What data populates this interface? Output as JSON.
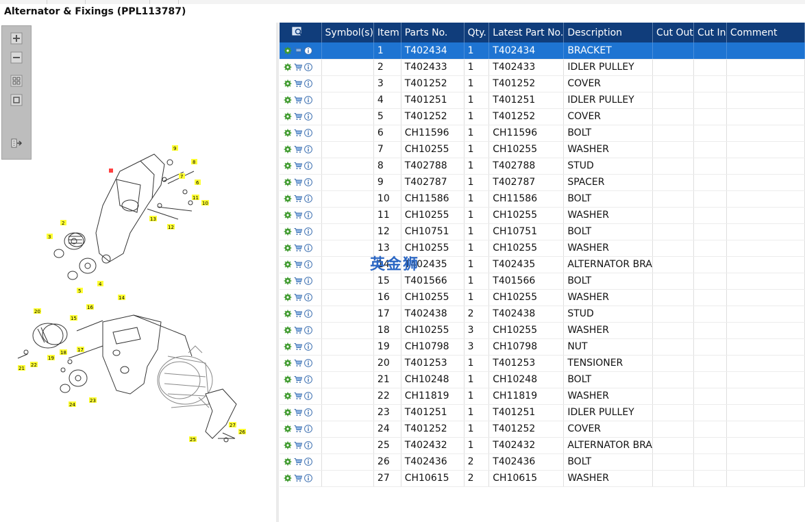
{
  "window": {
    "title": "Alternator & Fixings (PPL113787)"
  },
  "toolbar": {
    "buttons": [
      {
        "name": "zoom-in",
        "icon": "zoom-in-icon"
      },
      {
        "name": "zoom-out",
        "icon": "zoom-out-icon"
      },
      {
        "name": "fit-all",
        "icon": "fit-all-icon"
      },
      {
        "name": "fit-window",
        "icon": "fit-window-icon"
      },
      {
        "name": "export",
        "icon": "export-icon"
      }
    ]
  },
  "diagram": {
    "callouts": [
      "1",
      "2",
      "3",
      "4",
      "5",
      "6",
      "7",
      "8",
      "9",
      "10",
      "11",
      "12",
      "13",
      "14",
      "15",
      "16",
      "17",
      "18",
      "19",
      "20",
      "21",
      "22",
      "23",
      "24",
      "25",
      "26",
      "27"
    ]
  },
  "watermark": "英金狮",
  "table": {
    "columns": [
      "",
      "Symbol(s)",
      "Item",
      "Parts No.",
      "Qty.",
      "Latest Part No.",
      "Description",
      "Cut Out",
      "Cut In",
      "Comment"
    ],
    "selected_row": 0,
    "rows": [
      {
        "item": "1",
        "part_no": "T402434",
        "qty": "1",
        "latest": "T402434",
        "desc": "BRACKET"
      },
      {
        "item": "2",
        "part_no": "T402433",
        "qty": "1",
        "latest": "T402433",
        "desc": "IDLER PULLEY"
      },
      {
        "item": "3",
        "part_no": "T401252",
        "qty": "1",
        "latest": "T401252",
        "desc": "COVER"
      },
      {
        "item": "4",
        "part_no": "T401251",
        "qty": "1",
        "latest": "T401251",
        "desc": "IDLER PULLEY"
      },
      {
        "item": "5",
        "part_no": "T401252",
        "qty": "1",
        "latest": "T401252",
        "desc": "COVER"
      },
      {
        "item": "6",
        "part_no": "CH11596",
        "qty": "1",
        "latest": "CH11596",
        "desc": "BOLT"
      },
      {
        "item": "7",
        "part_no": "CH10255",
        "qty": "1",
        "latest": "CH10255",
        "desc": "WASHER"
      },
      {
        "item": "8",
        "part_no": "T402788",
        "qty": "1",
        "latest": "T402788",
        "desc": "STUD"
      },
      {
        "item": "9",
        "part_no": "T402787",
        "qty": "1",
        "latest": "T402787",
        "desc": "SPACER"
      },
      {
        "item": "10",
        "part_no": "CH11586",
        "qty": "1",
        "latest": "CH11586",
        "desc": "BOLT"
      },
      {
        "item": "11",
        "part_no": "CH10255",
        "qty": "1",
        "latest": "CH10255",
        "desc": "WASHER"
      },
      {
        "item": "12",
        "part_no": "CH10751",
        "qty": "1",
        "latest": "CH10751",
        "desc": "BOLT"
      },
      {
        "item": "13",
        "part_no": "CH10255",
        "qty": "1",
        "latest": "CH10255",
        "desc": "WASHER"
      },
      {
        "item": "14",
        "part_no": "T402435",
        "qty": "1",
        "latest": "T402435",
        "desc": "ALTERNATOR BRA"
      },
      {
        "item": "15",
        "part_no": "T401566",
        "qty": "1",
        "latest": "T401566",
        "desc": "BOLT"
      },
      {
        "item": "16",
        "part_no": "CH10255",
        "qty": "1",
        "latest": "CH10255",
        "desc": "WASHER"
      },
      {
        "item": "17",
        "part_no": "T402438",
        "qty": "2",
        "latest": "T402438",
        "desc": "STUD"
      },
      {
        "item": "18",
        "part_no": "CH10255",
        "qty": "3",
        "latest": "CH10255",
        "desc": "WASHER"
      },
      {
        "item": "19",
        "part_no": "CH10798",
        "qty": "3",
        "latest": "CH10798",
        "desc": "NUT"
      },
      {
        "item": "20",
        "part_no": "T401253",
        "qty": "1",
        "latest": "T401253",
        "desc": "TENSIONER"
      },
      {
        "item": "21",
        "part_no": "CH10248",
        "qty": "1",
        "latest": "CH10248",
        "desc": "BOLT"
      },
      {
        "item": "22",
        "part_no": "CH11819",
        "qty": "1",
        "latest": "CH11819",
        "desc": "WASHER"
      },
      {
        "item": "23",
        "part_no": "T401251",
        "qty": "1",
        "latest": "T401251",
        "desc": "IDLER PULLEY"
      },
      {
        "item": "24",
        "part_no": "T401252",
        "qty": "1",
        "latest": "T401252",
        "desc": "COVER"
      },
      {
        "item": "25",
        "part_no": "T402432",
        "qty": "1",
        "latest": "T402432",
        "desc": "ALTERNATOR BRA"
      },
      {
        "item": "26",
        "part_no": "T402436",
        "qty": "2",
        "latest": "T402436",
        "desc": "BOLT"
      },
      {
        "item": "27",
        "part_no": "CH10615",
        "qty": "2",
        "latest": "CH10615",
        "desc": "WASHER"
      }
    ]
  },
  "colors": {
    "header_bg": "#103d7b",
    "selected_row": "#1e74d2",
    "callout_bg": "#ffff33",
    "callout_selected": "#ff4040"
  },
  "row_icons": [
    "settings-gear-icon",
    "cart-icon",
    "info-icon"
  ]
}
